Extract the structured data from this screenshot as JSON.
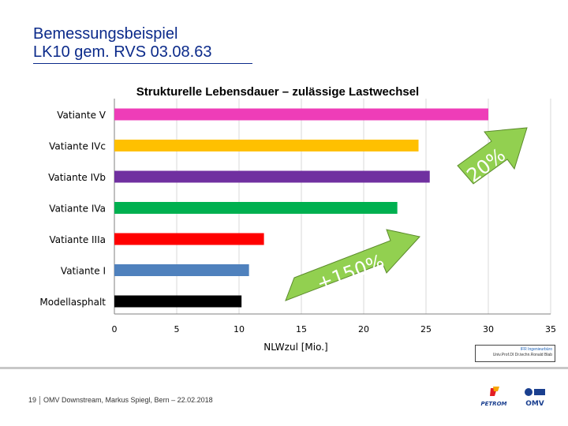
{
  "slide": {
    "title_line1": "Bemessungsbeispiel",
    "title_line2": "LK10 gem. RVS 03.08.63"
  },
  "footer": {
    "page": "19",
    "text": "OMV Downstream, Markus Spiegl, Bern – 22.02.2018"
  },
  "tagbox": {
    "line1": "IFR Ingenieurbüro",
    "line2": "Univ.Prof.DI Dr.techn.Ronald Blab"
  },
  "logos": {
    "petrom": "PETROM",
    "omv": "OMV"
  },
  "annotations": [
    {
      "text": "+20%",
      "color": "#92d050"
    },
    {
      "text": "+150%",
      "color": "#92d050"
    }
  ],
  "chart_data": {
    "type": "bar",
    "orientation": "horizontal",
    "title": "Strukturelle Lebensdauer – zulässige Lastwechsel",
    "xlabel": "NLWzul  [Mio.]",
    "xlim": [
      0,
      35
    ],
    "xticks": [
      "0",
      "5",
      "10",
      "15",
      "20",
      "25",
      "30",
      "35"
    ],
    "grid": true,
    "categories": [
      "Vatiante V",
      "Vatiante IVc",
      "Vatiante IVb",
      "Vatiante IVa",
      "Vatiante IIIa",
      "Vatiante I",
      "Modellasphalt"
    ],
    "values": [
      30,
      24.4,
      25.3,
      22.7,
      12,
      10.8,
      10.2
    ],
    "colors": [
      "#ee3db8",
      "#ffc000",
      "#7030a0",
      "#00b050",
      "#ff0000",
      "#4f81bd",
      "#000000"
    ]
  }
}
